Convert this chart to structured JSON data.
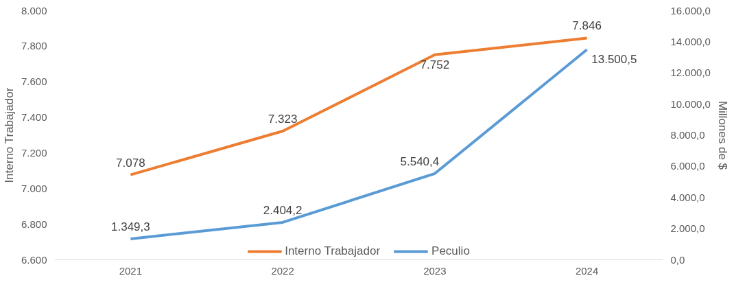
{
  "chart_data": {
    "type": "line",
    "categories": [
      "2021",
      "2022",
      "2023",
      "2024"
    ],
    "ylabel": "Interno Trabajador",
    "y2label": "Millones de $",
    "ylim": [
      6600,
      8000
    ],
    "yticks": [
      {
        "value": 6600,
        "label": "6.600"
      },
      {
        "value": 6800,
        "label": "6.800"
      },
      {
        "value": 7000,
        "label": "7.000"
      },
      {
        "value": 7200,
        "label": "7.200"
      },
      {
        "value": 7400,
        "label": "7.400"
      },
      {
        "value": 7600,
        "label": "7.600"
      },
      {
        "value": 7800,
        "label": "7.800"
      },
      {
        "value": 8000,
        "label": "8.000"
      }
    ],
    "y2lim": [
      0,
      16000
    ],
    "y2ticks": [
      {
        "value": 0,
        "label": "0,0"
      },
      {
        "value": 2000,
        "label": "2.000,0"
      },
      {
        "value": 4000,
        "label": "4.000,0"
      },
      {
        "value": 6000,
        "label": "6.000,0"
      },
      {
        "value": 8000,
        "label": "8.000,0"
      },
      {
        "value": 10000,
        "label": "10.000,0"
      },
      {
        "value": 12000,
        "label": "12.000,0"
      },
      {
        "value": 14000,
        "label": "14.000,0"
      },
      {
        "value": 16000,
        "label": "16.000,0"
      }
    ],
    "series": [
      {
        "name": "Interno Trabajador",
        "color": "#ed7d31",
        "values": [
          7078,
          7323,
          7752,
          7846
        ],
        "value_labels": [
          "7.078",
          "7.323",
          "7.752",
          "7.846"
        ]
      },
      {
        "name": "Peculio",
        "color": "#5b9bd5",
        "axis": "y2",
        "values": [
          1349.3,
          2404.2,
          5540.4,
          13500.5
        ],
        "value_labels": [
          "1.349,3",
          "2.404,2",
          "5.540,4",
          "13.500,5"
        ]
      }
    ],
    "grid": false,
    "legend": "bottom",
    "marker": "none",
    "line_style": "solid"
  }
}
